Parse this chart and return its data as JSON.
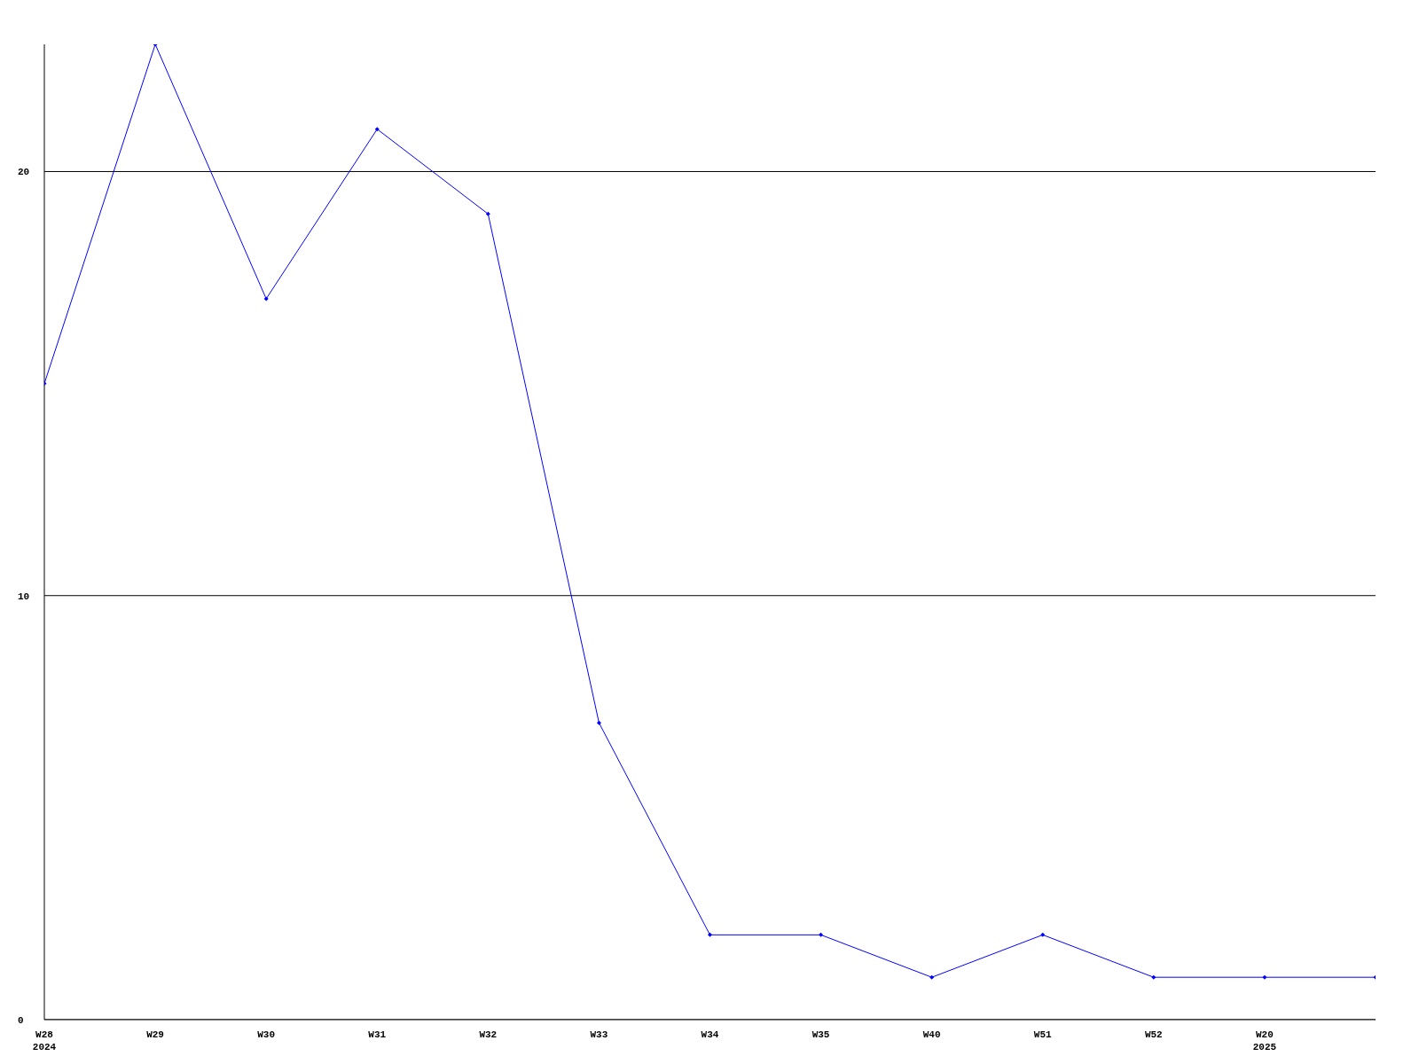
{
  "chart_data": {
    "type": "line",
    "categories": [
      "W28\n2024",
      "W29",
      "W30",
      "W31",
      "W32",
      "W33",
      "W34",
      "W35",
      "W40",
      "W51",
      "W52",
      "W20\n2025",
      null
    ],
    "series": [
      {
        "color": "#0000ff",
        "values": [
          15,
          23,
          17,
          21,
          19,
          7,
          2,
          2,
          1,
          2,
          1,
          1,
          1
        ]
      }
    ],
    "ylim": [
      0,
      23
    ],
    "yticks": [
      0,
      10,
      20
    ],
    "grid": "y",
    "marker": "diamond"
  }
}
